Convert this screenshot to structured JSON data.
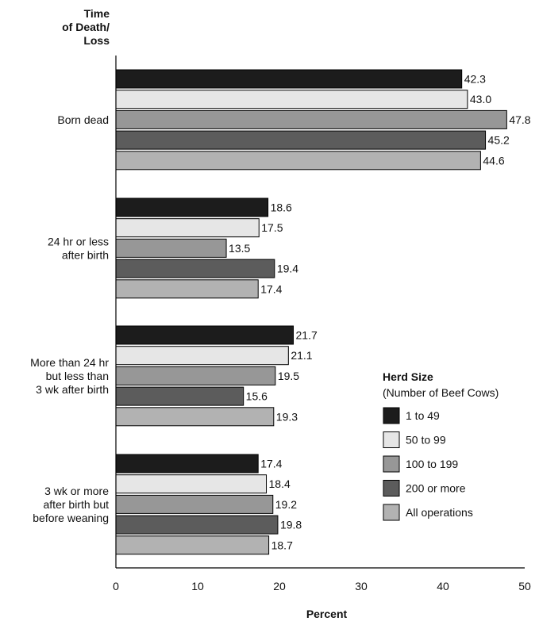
{
  "chart_data": {
    "type": "bar",
    "orientation": "horizontal",
    "y_axis_title": [
      "Time",
      "of Death/",
      "Loss"
    ],
    "xlabel": "Percent",
    "xlim": [
      0,
      50
    ],
    "xticks": [
      0,
      10,
      20,
      30,
      40,
      50
    ],
    "categories": [
      [
        "Born dead"
      ],
      [
        "24 hr or less",
        "after birth"
      ],
      [
        "More than 24 hr",
        "but less than",
        "3 wk after birth"
      ],
      [
        "3 wk or more",
        "after birth but",
        "before weaning"
      ]
    ],
    "series": [
      {
        "name": "1 to 49",
        "color": "#1c1c1c",
        "values": [
          42.3,
          18.6,
          21.7,
          17.4
        ]
      },
      {
        "name": "50 to 99",
        "color": "#e6e6e6",
        "values": [
          43.0,
          17.5,
          21.1,
          18.4
        ]
      },
      {
        "name": "100 to 199",
        "color": "#979797",
        "values": [
          47.8,
          13.5,
          19.5,
          19.2
        ]
      },
      {
        "name": "200 or more",
        "color": "#5c5c5c",
        "values": [
          45.2,
          19.4,
          15.6,
          19.8
        ]
      },
      {
        "name": "All operations",
        "color": "#b2b2b2",
        "values": [
          44.6,
          17.4,
          19.3,
          18.7
        ]
      }
    ],
    "value_labels": [
      [
        "42.3",
        "18.6",
        "21.7",
        "17.4"
      ],
      [
        "43.0",
        "17.5",
        "21.1",
        "18.4"
      ],
      [
        "47.8",
        "13.5",
        "19.5",
        "19.2"
      ],
      [
        "45.2",
        "19.4",
        "15.6",
        "19.8"
      ],
      [
        "44.6",
        "17.4",
        "19.3",
        "18.7"
      ]
    ],
    "legend": {
      "title": "Herd Size",
      "subtitle": "(Number of Beef Cows)",
      "placement": "lower-right"
    }
  }
}
